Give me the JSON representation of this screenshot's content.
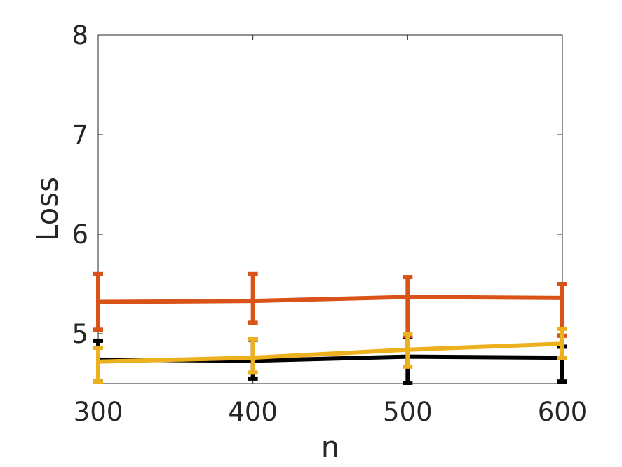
{
  "chart_data": {
    "type": "line",
    "xlabel": "n",
    "ylabel": "Loss",
    "x": [
      300,
      400,
      500,
      600
    ],
    "xlim": [
      300,
      600
    ],
    "ylim": [
      4.5,
      8
    ],
    "xticks": [
      300,
      400,
      500,
      600
    ],
    "yticks": [
      5,
      6,
      7,
      8
    ],
    "grid": false,
    "series": [
      {
        "color": "#000000",
        "values": [
          4.74,
          4.73,
          4.77,
          4.76
        ],
        "err_low": [
          4.52,
          4.55,
          4.5,
          4.52
        ],
        "err_high": [
          4.93,
          4.94,
          4.97,
          4.87
        ]
      },
      {
        "color": "#d95319",
        "values": [
          5.32,
          5.33,
          5.37,
          5.36
        ],
        "err_low": [
          5.04,
          5.11,
          4.98,
          4.98
        ],
        "err_high": [
          5.6,
          5.6,
          5.57,
          5.5
        ]
      },
      {
        "color": "#edb120",
        "values": [
          4.72,
          4.76,
          4.84,
          4.9
        ],
        "err_low": [
          4.52,
          4.61,
          4.67,
          4.76
        ],
        "err_high": [
          4.86,
          4.95,
          5.0,
          5.05
        ]
      }
    ]
  }
}
